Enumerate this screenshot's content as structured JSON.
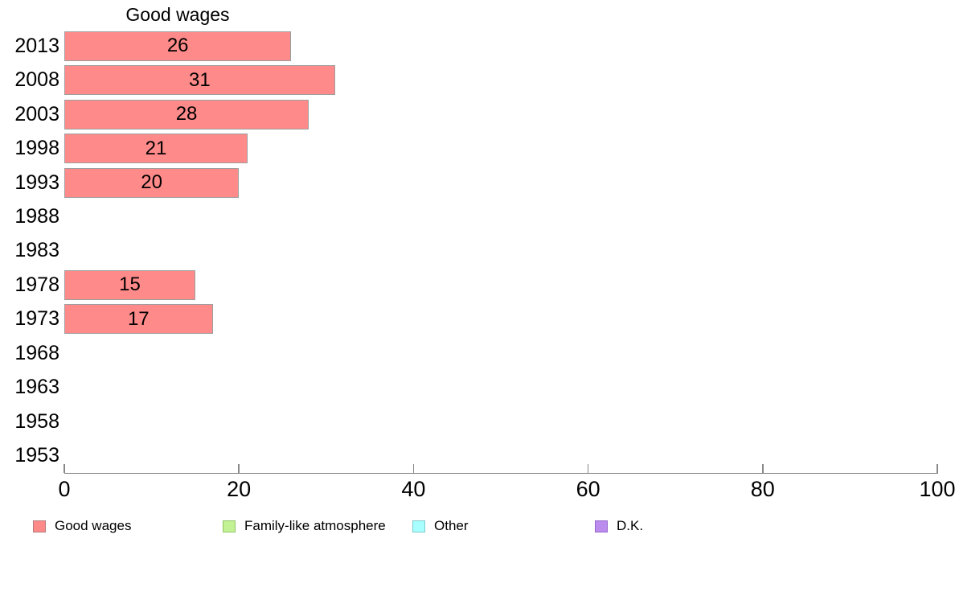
{
  "chart_data": {
    "type": "bar",
    "orientation": "horizontal",
    "title": "Good wages",
    "series_name": "Good wages",
    "categories": [
      "2013",
      "2008",
      "2003",
      "1998",
      "1993",
      "1988",
      "1983",
      "1978",
      "1973",
      "1968",
      "1963",
      "1958",
      "1953"
    ],
    "values": [
      26,
      31,
      28,
      21,
      20,
      null,
      null,
      15,
      17,
      null,
      null,
      null,
      null
    ],
    "xlim": [
      0,
      100
    ],
    "x_ticks": [
      "0",
      "20",
      "40",
      "60",
      "80",
      "100"
    ],
    "grid": false,
    "value_labels_shown": true,
    "legend_position": "bottom",
    "colors": {
      "bar_fill": "#ff8a8a",
      "bar_border": "#9e9e9e",
      "axis_line": "#888888",
      "text": "#000000"
    },
    "legend": [
      {
        "label": "Good wages",
        "fill": "#ff8a8a",
        "border": "#b87c7c"
      },
      {
        "label": "Family-like atmosphere",
        "fill": "#c2f294",
        "border": "#90c466"
      },
      {
        "label": "Other",
        "fill": "#a8ffff",
        "border": "#7ecaca"
      },
      {
        "label": "D.K.",
        "fill": "#bb8bee",
        "border": "#9668cc"
      }
    ]
  }
}
